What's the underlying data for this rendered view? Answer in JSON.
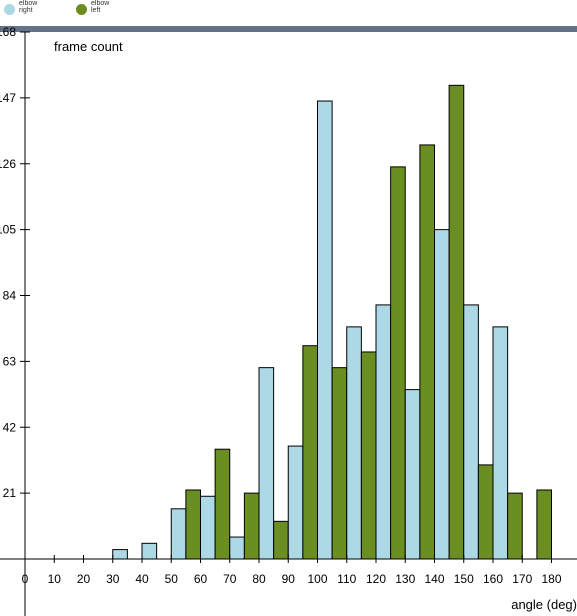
{
  "legend": {
    "items": [
      {
        "label": "elbow right",
        "color": "#add8e6"
      },
      {
        "label": "elbow left",
        "color": "#6b8e23"
      }
    ]
  },
  "colors": {
    "topbar": "#627387",
    "right": "#add8e6",
    "left": "#6b8e23"
  },
  "chart_data": {
    "type": "bar",
    "title": "",
    "ylabel": "frame count",
    "xlabel": "angle (deg)",
    "x_ticks": [
      "0",
      "10",
      "20",
      "30",
      "40",
      "50",
      "60",
      "70",
      "80",
      "90",
      "100",
      "110",
      "120",
      "130",
      "140",
      "150",
      "160",
      "170",
      "180"
    ],
    "y_ticks": [
      "21",
      "42",
      "63",
      "84",
      "105",
      "126",
      "147",
      "168"
    ],
    "ylim": [
      0,
      168
    ],
    "xlim": [
      0,
      180
    ],
    "bin_width": 10,
    "categories": [
      "0",
      "10",
      "20",
      "30",
      "40",
      "50",
      "60",
      "70",
      "80",
      "90",
      "100",
      "110",
      "120",
      "130",
      "140",
      "150",
      "160",
      "170"
    ],
    "series": [
      {
        "name": "elbow right",
        "color": "#add8e6",
        "values": [
          0,
          0,
          0,
          3,
          5,
          16,
          20,
          7,
          61,
          36,
          146,
          74,
          81,
          54,
          105,
          81,
          74,
          0
        ]
      },
      {
        "name": "elbow left",
        "color": "#6b8e23",
        "values": [
          0,
          0,
          0,
          0,
          0,
          22,
          35,
          21,
          12,
          68,
          61,
          66,
          125,
          132,
          151,
          30,
          21,
          22
        ]
      }
    ]
  }
}
